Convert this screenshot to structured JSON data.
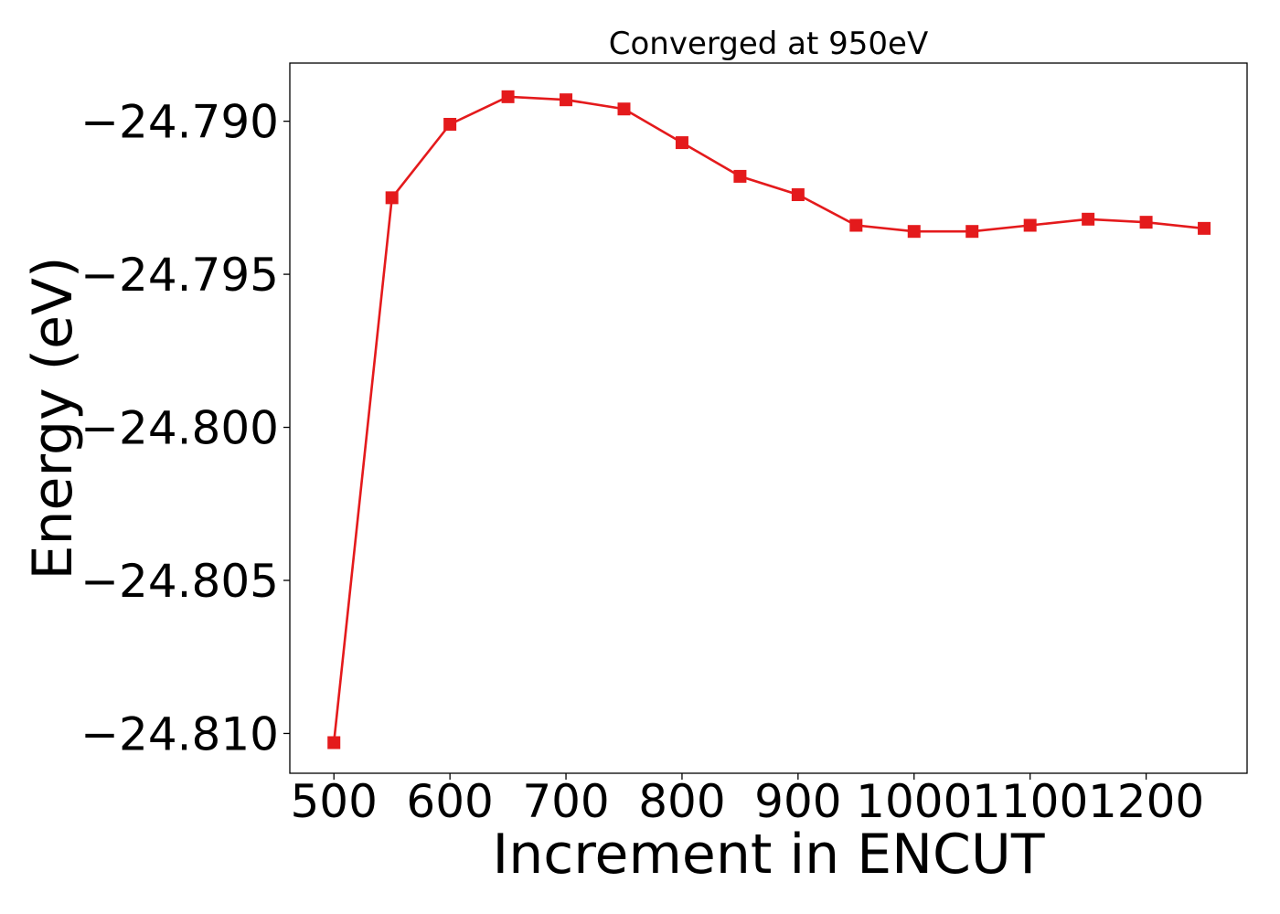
{
  "chart_data": {
    "type": "line",
    "title": "Converged at 950eV",
    "xlabel": "Increment in ENCUT",
    "ylabel": "Energy (eV)",
    "x": [
      500,
      550,
      600,
      650,
      700,
      750,
      800,
      850,
      900,
      950,
      1000,
      1050,
      1100,
      1150,
      1200,
      1250
    ],
    "series": [
      {
        "values": [
          -24.8103,
          -24.7925,
          -24.7901,
          -24.7892,
          -24.7893,
          -24.7896,
          -24.7907,
          -24.7918,
          -24.7924,
          -24.7934,
          -24.7936,
          -24.7936,
          -24.7934,
          -24.7932,
          -24.7933,
          -24.7935
        ],
        "color": "#e41a1c",
        "marker": "square"
      }
    ],
    "xlim": [
      462,
      1287
    ],
    "ylim": [
      -24.8113,
      -24.7881
    ],
    "xticks": [
      500,
      600,
      700,
      800,
      900,
      1000,
      1100,
      1200
    ],
    "xtick_labels": [
      "500",
      "600",
      "700",
      "800",
      "900",
      "1000",
      "1100",
      "1200"
    ],
    "yticks": [
      -24.81,
      -24.805,
      -24.8,
      -24.795,
      -24.79
    ],
    "ytick_labels": [
      "−24.810",
      "−24.805",
      "−24.800",
      "−24.795",
      "−24.790"
    ],
    "grid": false,
    "legend": false
  }
}
